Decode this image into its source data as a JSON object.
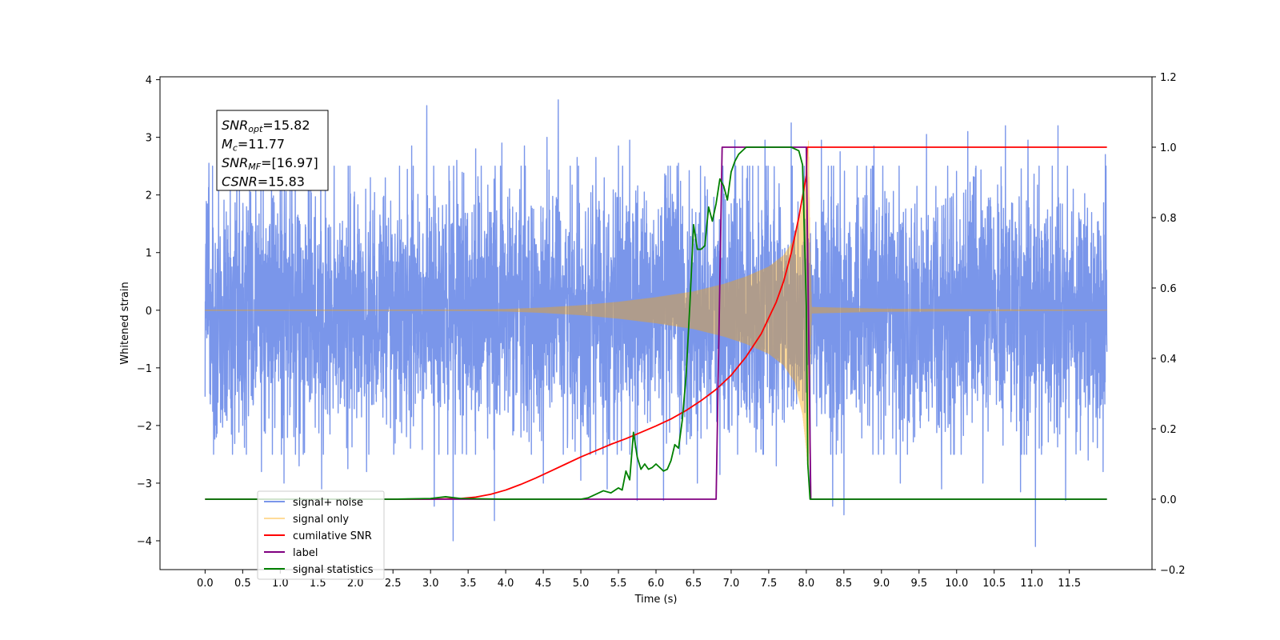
{
  "chart_data": {
    "type": "line",
    "xlabel": "Time (s)",
    "ylabel": "Whitened strain",
    "xlim": [
      -0.6,
      12.6
    ],
    "ylim": [
      -4.5,
      4.05
    ],
    "y2lim": [
      -0.2,
      1.2
    ],
    "xticks": [
      0.0,
      0.5,
      1.0,
      1.5,
      2.0,
      2.5,
      3.0,
      3.5,
      4.0,
      4.5,
      5.0,
      5.5,
      6.0,
      6.5,
      7.0,
      7.5,
      8.0,
      8.5,
      9.0,
      9.5,
      10.0,
      10.5,
      11.0,
      11.5
    ],
    "xtick_labels": [
      "0.0",
      "0.5",
      "1.0",
      "1.5",
      "2.0",
      "2.5",
      "3.0",
      "3.5",
      "4.0",
      "4.5",
      "5.0",
      "5.5",
      "6.0",
      "6.5",
      "7.0",
      "7.5",
      "8.0",
      "8.5",
      "9.0",
      "9.5",
      "10.0",
      "10.5",
      "11.0",
      "11.5"
    ],
    "yticks": [
      -4,
      -3,
      -2,
      -1,
      0,
      1,
      2,
      3,
      4
    ],
    "ytick_labels": [
      "−4",
      "−3",
      "−2",
      "−1",
      "0",
      "1",
      "2",
      "3",
      "4"
    ],
    "y2ticks": [
      -0.2,
      0.0,
      0.2,
      0.4,
      0.6,
      0.8,
      1.0,
      1.2
    ],
    "y2tick_labels": [
      "−0.2",
      "0.0",
      "0.2",
      "0.4",
      "0.6",
      "0.8",
      "1.0",
      "1.2"
    ],
    "grid": false,
    "legend_position": "lower-left",
    "annotation_box": {
      "position": "top-left",
      "lines": [
        {
          "sym": "SNR",
          "sub": "opt",
          "val": "=15.82"
        },
        {
          "sym": "M",
          "sub": "c",
          "val": "=11.77"
        },
        {
          "sym": "SNR",
          "sub": "MF",
          "val": "=[16.97]"
        },
        {
          "sym": "CSNR",
          "sub": "",
          "val": "=15.83"
        }
      ]
    },
    "series": [
      {
        "name": "signal+ noise",
        "axis": "left",
        "color": "#4169e1",
        "opacity": 0.7,
        "x_range": [
          0.0,
          12.0
        ],
        "amplitude_std": 1.05,
        "peaks": [
          [
            0.05,
            2.55
          ],
          [
            0.1,
            2.5
          ],
          [
            0.35,
            2.1
          ],
          [
            0.55,
            2.35
          ],
          [
            1.0,
            2.2
          ],
          [
            1.2,
            2.5
          ],
          [
            1.6,
            2.3
          ],
          [
            1.9,
            2.2
          ],
          [
            2.2,
            2.3
          ],
          [
            2.75,
            2.85
          ],
          [
            2.95,
            3.55
          ],
          [
            3.35,
            2.6
          ],
          [
            3.6,
            2.8
          ],
          [
            3.95,
            2.9
          ],
          [
            4.25,
            2.85
          ],
          [
            4.55,
            3.0
          ],
          [
            4.7,
            3.65
          ],
          [
            4.95,
            2.65
          ],
          [
            5.2,
            2.65
          ],
          [
            5.5,
            2.85
          ],
          [
            5.65,
            2.95
          ],
          [
            6.1,
            3.0
          ],
          [
            6.3,
            2.55
          ],
          [
            7.05,
            2.95
          ],
          [
            7.45,
            2.95
          ],
          [
            7.8,
            3.25
          ],
          [
            8.2,
            2.95
          ],
          [
            8.45,
            2.75
          ],
          [
            8.9,
            2.85
          ],
          [
            9.25,
            2.9
          ],
          [
            9.6,
            3.05
          ],
          [
            10.15,
            3.1
          ],
          [
            10.65,
            3.2
          ],
          [
            10.95,
            2.95
          ],
          [
            11.35,
            3.2
          ],
          [
            11.95,
            3.5
          ],
          [
            11.98,
            2.7
          ]
        ],
        "troughs": [
          [
            0.0,
            -1.5
          ],
          [
            0.15,
            -2.2
          ],
          [
            0.35,
            -2.15
          ],
          [
            0.55,
            -2.5
          ],
          [
            0.75,
            -2.8
          ],
          [
            1.05,
            -3.0
          ],
          [
            1.25,
            -2.7
          ],
          [
            1.55,
            -3.1
          ],
          [
            1.9,
            -2.75
          ],
          [
            2.15,
            -2.8
          ],
          [
            3.05,
            -3.4
          ],
          [
            3.3,
            -4.0
          ],
          [
            3.85,
            -3.65
          ],
          [
            4.5,
            -3.0
          ],
          [
            5.0,
            -2.95
          ],
          [
            5.35,
            -3.1
          ],
          [
            5.75,
            -3.3
          ],
          [
            6.1,
            -3.3
          ],
          [
            6.55,
            -3.0
          ],
          [
            6.85,
            -2.85
          ],
          [
            7.6,
            -2.7
          ],
          [
            8.05,
            -3.1
          ],
          [
            8.35,
            -3.4
          ],
          [
            8.5,
            -3.55
          ],
          [
            9.25,
            -3.0
          ],
          [
            9.8,
            -3.1
          ],
          [
            10.35,
            -3.0
          ],
          [
            10.85,
            -3.15
          ],
          [
            11.05,
            -4.1
          ],
          [
            11.45,
            -3.3
          ],
          [
            11.75,
            -2.6
          ],
          [
            11.95,
            -2.8
          ]
        ]
      },
      {
        "name": "signal only",
        "axis": "left",
        "color": "#ffa500",
        "opacity": 0.4,
        "x_range": [
          0.0,
          12.0
        ],
        "envelope": [
          [
            0.0,
            0.004
          ],
          [
            2.0,
            0.004
          ],
          [
            3.5,
            0.006
          ],
          [
            4.0,
            0.015
          ],
          [
            4.5,
            0.04
          ],
          [
            5.0,
            0.08
          ],
          [
            5.5,
            0.14
          ],
          [
            6.0,
            0.22
          ],
          [
            6.5,
            0.32
          ],
          [
            6.9,
            0.45
          ],
          [
            7.2,
            0.58
          ],
          [
            7.5,
            0.75
          ],
          [
            7.7,
            0.95
          ],
          [
            7.85,
            1.25
          ],
          [
            7.95,
            1.8
          ],
          [
            8.0,
            2.4
          ],
          [
            8.03,
            2.95
          ],
          [
            8.05,
            1.2
          ],
          [
            8.07,
            0.05
          ],
          [
            9.0,
            0.02
          ],
          [
            12.0,
            0.0
          ]
        ]
      },
      {
        "name": "cumilative SNR",
        "axis": "right",
        "color": "#ff0000",
        "x": [
          0.0,
          3.0,
          3.4,
          3.6,
          3.8,
          4.0,
          4.2,
          4.4,
          4.6,
          4.8,
          5.0,
          5.2,
          5.4,
          5.6,
          5.8,
          6.0,
          6.2,
          6.4,
          6.6,
          6.8,
          7.0,
          7.2,
          7.4,
          7.6,
          7.7,
          7.8,
          7.9,
          7.95,
          8.0,
          8.01,
          12.0
        ],
        "values": [
          0.0,
          0.0,
          0.002,
          0.006,
          0.014,
          0.026,
          0.042,
          0.06,
          0.08,
          0.1,
          0.12,
          0.138,
          0.156,
          0.172,
          0.19,
          0.208,
          0.228,
          0.252,
          0.28,
          0.312,
          0.352,
          0.405,
          0.47,
          0.56,
          0.62,
          0.7,
          0.8,
          0.86,
          0.92,
          1.0,
          1.0
        ]
      },
      {
        "name": "label",
        "axis": "right",
        "color": "#800080",
        "x": [
          0.0,
          6.8,
          6.88,
          8.0,
          8.06,
          12.0
        ],
        "values": [
          0.0,
          0.0,
          1.0,
          1.0,
          0.0,
          0.0
        ]
      },
      {
        "name": "signal statistics",
        "axis": "right",
        "color": "#008000",
        "x": [
          0.0,
          2.5,
          3.0,
          3.2,
          3.4,
          4.0,
          5.0,
          5.1,
          5.2,
          5.3,
          5.4,
          5.5,
          5.55,
          5.6,
          5.65,
          5.7,
          5.75,
          5.8,
          5.85,
          5.9,
          5.95,
          6.0,
          6.05,
          6.1,
          6.15,
          6.2,
          6.25,
          6.3,
          6.35,
          6.4,
          6.45,
          6.5,
          6.55,
          6.6,
          6.65,
          6.7,
          6.75,
          6.8,
          6.85,
          6.9,
          6.95,
          7.0,
          7.05,
          7.1,
          7.15,
          7.2,
          7.3,
          7.4,
          7.5,
          7.6,
          7.7,
          7.8,
          7.9,
          7.95,
          8.0,
          8.02,
          8.05,
          12.0
        ],
        "values": [
          0.0,
          0.0,
          0.002,
          0.007,
          0.002,
          0.0,
          0.0,
          0.004,
          0.014,
          0.024,
          0.018,
          0.032,
          0.026,
          0.08,
          0.055,
          0.19,
          0.12,
          0.085,
          0.1,
          0.085,
          0.09,
          0.1,
          0.09,
          0.08,
          0.085,
          0.11,
          0.155,
          0.145,
          0.225,
          0.35,
          0.55,
          0.78,
          0.71,
          0.71,
          0.72,
          0.83,
          0.79,
          0.84,
          0.91,
          0.89,
          0.85,
          0.93,
          0.96,
          0.98,
          0.99,
          1.0,
          1.0,
          1.0,
          1.0,
          1.0,
          1.0,
          1.0,
          0.99,
          0.95,
          0.55,
          0.1,
          0.0,
          0.0
        ]
      }
    ]
  }
}
